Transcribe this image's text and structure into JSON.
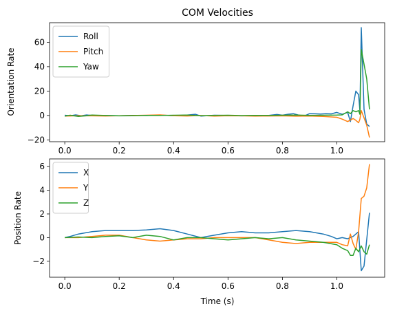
{
  "figure_title": "COM Velocities",
  "chart_data": [
    {
      "type": "line",
      "title": "COM Velocities",
      "xlabel": "",
      "ylabel": "Orientation Rate",
      "xlim": [
        -0.056,
        1.176
      ],
      "ylim": [
        -21.5,
        76.0
      ],
      "xticks": [
        0.0,
        0.2,
        0.4,
        0.6,
        0.8,
        1.0
      ],
      "yticks": [
        -20,
        0,
        20,
        40,
        60
      ],
      "legend_position": "upper-left",
      "grid": false,
      "series": [
        {
          "name": "Roll",
          "color": "#1f77b4",
          "x": [
            0.0,
            0.02,
            0.04,
            0.06,
            0.08,
            0.1,
            0.15,
            0.2,
            0.25,
            0.3,
            0.35,
            0.4,
            0.45,
            0.48,
            0.5,
            0.55,
            0.6,
            0.65,
            0.7,
            0.75,
            0.78,
            0.8,
            0.82,
            0.84,
            0.86,
            0.88,
            0.9,
            0.92,
            0.94,
            0.96,
            0.98,
            1.0,
            1.02,
            1.04,
            1.05,
            1.06,
            1.07,
            1.08,
            1.085,
            1.09,
            1.1,
            1.11,
            1.12
          ],
          "y": [
            0.2,
            -0.3,
            0.5,
            -0.2,
            0.4,
            0.1,
            0.0,
            -0.2,
            0.1,
            0.0,
            0.3,
            -0.2,
            0.3,
            1.0,
            -0.5,
            0.2,
            0.0,
            -0.3,
            0.0,
            0.1,
            0.8,
            0.2,
            1.0,
            1.5,
            0.3,
            -0.5,
            1.5,
            1.4,
            1.2,
            1.5,
            1.3,
            2.5,
            1.0,
            2.5,
            -5.0,
            8.0,
            20.0,
            17.0,
            4.0,
            72.0,
            5.0,
            -7.0,
            -9.0
          ]
        },
        {
          "name": "Pitch",
          "color": "#ff7f0e",
          "x": [
            0.0,
            0.05,
            0.1,
            0.15,
            0.2,
            0.25,
            0.3,
            0.35,
            0.4,
            0.45,
            0.5,
            0.55,
            0.6,
            0.65,
            0.7,
            0.75,
            0.8,
            0.85,
            0.9,
            0.95,
            1.0,
            1.02,
            1.04,
            1.06,
            1.07,
            1.08,
            1.085,
            1.09,
            1.1,
            1.11,
            1.12
          ],
          "y": [
            -0.5,
            -0.2,
            -0.3,
            -0.4,
            -0.2,
            0.0,
            0.2,
            0.5,
            -0.2,
            -0.4,
            0.0,
            -0.5,
            -0.2,
            -0.3,
            -0.5,
            -0.4,
            -0.3,
            -0.6,
            -0.4,
            -0.8,
            -1.5,
            -3.0,
            -5.0,
            -2.5,
            -4.0,
            -6.0,
            -3.0,
            4.0,
            -2.0,
            -8.0,
            -18.0
          ]
        },
        {
          "name": "Yaw",
          "color": "#2ca02c",
          "x": [
            0.0,
            0.02,
            0.05,
            0.08,
            0.1,
            0.15,
            0.2,
            0.25,
            0.3,
            0.35,
            0.4,
            0.45,
            0.5,
            0.55,
            0.6,
            0.65,
            0.7,
            0.75,
            0.8,
            0.85,
            0.9,
            0.95,
            1.0,
            1.02,
            1.04,
            1.05,
            1.06,
            1.07,
            1.08,
            1.085,
            1.09,
            1.1,
            1.11,
            1.12
          ],
          "y": [
            -0.5,
            0.2,
            -0.8,
            -0.2,
            0.3,
            0.0,
            -0.3,
            -0.2,
            0.1,
            0.0,
            0.2,
            0.3,
            -0.2,
            0.1,
            0.2,
            -0.1,
            0.1,
            0.0,
            0.2,
            0.3,
            0.1,
            0.2,
            0.3,
            0.5,
            3.0,
            1.5,
            4.0,
            3.0,
            4.0,
            1.0,
            54.0,
            42.0,
            30.0,
            5.0
          ]
        }
      ]
    },
    {
      "type": "line",
      "title": "",
      "xlabel": "Time (s)",
      "ylabel": "Position Rate",
      "xlim": [
        -0.056,
        1.176
      ],
      "ylim": [
        -3.35,
        6.65
      ],
      "xticks": [
        0.0,
        0.2,
        0.4,
        0.6,
        0.8,
        1.0
      ],
      "yticks": [
        -2,
        0,
        2,
        4,
        6
      ],
      "legend_position": "upper-left",
      "grid": false,
      "series": [
        {
          "name": "X",
          "color": "#1f77b4",
          "x": [
            0.0,
            0.02,
            0.05,
            0.1,
            0.15,
            0.2,
            0.25,
            0.3,
            0.35,
            0.4,
            0.45,
            0.5,
            0.55,
            0.6,
            0.65,
            0.7,
            0.75,
            0.8,
            0.85,
            0.9,
            0.95,
            0.98,
            1.0,
            1.02,
            1.04,
            1.06,
            1.08,
            1.09,
            1.1,
            1.12
          ],
          "y": [
            0.0,
            0.1,
            0.3,
            0.5,
            0.6,
            0.6,
            0.6,
            0.65,
            0.75,
            0.6,
            0.3,
            0.0,
            0.2,
            0.4,
            0.5,
            0.4,
            0.4,
            0.5,
            0.6,
            0.5,
            0.3,
            0.1,
            -0.1,
            0.0,
            -0.1,
            0.1,
            0.5,
            -2.8,
            -2.4,
            2.1
          ]
        },
        {
          "name": "Y",
          "color": "#ff7f0e",
          "x": [
            0.0,
            0.05,
            0.1,
            0.15,
            0.2,
            0.25,
            0.3,
            0.35,
            0.4,
            0.45,
            0.5,
            0.55,
            0.6,
            0.65,
            0.7,
            0.75,
            0.8,
            0.85,
            0.9,
            0.95,
            1.0,
            1.02,
            1.04,
            1.05,
            1.06,
            1.07,
            1.08,
            1.09,
            1.1,
            1.11,
            1.12
          ],
          "y": [
            0.0,
            0.0,
            0.1,
            0.2,
            0.2,
            0.0,
            -0.2,
            -0.3,
            -0.2,
            -0.1,
            -0.1,
            0.0,
            0.0,
            0.0,
            0.0,
            -0.2,
            -0.4,
            -0.5,
            -0.4,
            -0.4,
            -0.4,
            -0.6,
            -0.7,
            0.3,
            -0.5,
            -1.0,
            0.5,
            3.3,
            3.5,
            4.2,
            6.2
          ]
        },
        {
          "name": "Z",
          "color": "#2ca02c",
          "x": [
            0.0,
            0.05,
            0.1,
            0.15,
            0.2,
            0.25,
            0.3,
            0.35,
            0.4,
            0.45,
            0.5,
            0.55,
            0.6,
            0.65,
            0.7,
            0.75,
            0.8,
            0.85,
            0.9,
            0.95,
            1.0,
            1.02,
            1.04,
            1.05,
            1.06,
            1.07,
            1.08,
            1.09,
            1.1,
            1.11,
            1.12
          ],
          "y": [
            0.0,
            0.05,
            0.0,
            0.1,
            0.15,
            0.0,
            0.2,
            0.1,
            -0.2,
            0.0,
            0.0,
            -0.1,
            -0.2,
            -0.1,
            0.0,
            -0.1,
            0.0,
            -0.2,
            -0.3,
            -0.4,
            -0.6,
            -0.9,
            -1.1,
            -1.5,
            -1.5,
            -0.9,
            -1.2,
            -0.7,
            -1.2,
            -1.4,
            -0.6
          ]
        }
      ]
    }
  ]
}
